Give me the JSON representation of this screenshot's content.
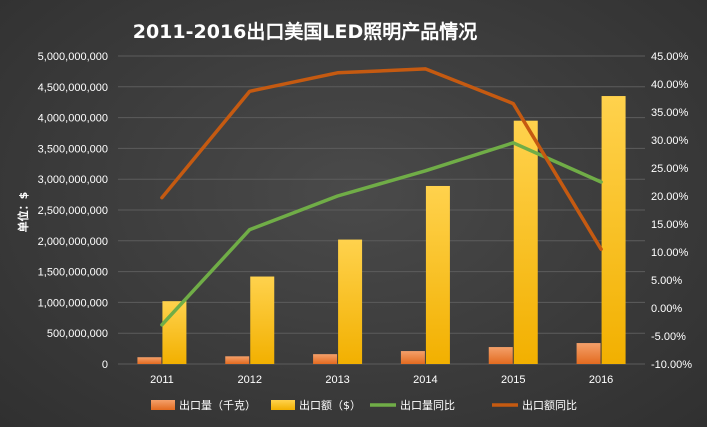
{
  "chart_data": {
    "type": "bar",
    "title": "2011-2016出口美国LED照明产品情况",
    "ylabel": "单位：$",
    "categories": [
      "2011",
      "2012",
      "2013",
      "2014",
      "2015",
      "2016"
    ],
    "ylim": [
      0,
      5000000000
    ],
    "y2lim": [
      -0.1,
      0.45
    ],
    "yticks": [
      "0",
      "500,000,000",
      "1,000,000,000",
      "1,500,000,000",
      "2,000,000,000",
      "2,500,000,000",
      "3,000,000,000",
      "3,500,000,000",
      "4,000,000,000",
      "4,500,000,000",
      "5,000,000,000"
    ],
    "y2ticks": [
      "-10.00%",
      "-5.00%",
      "0.00%",
      "5.00%",
      "10.00%",
      "15.00%",
      "20.00%",
      "25.00%",
      "30.00%",
      "35.00%",
      "40.00%",
      "45.00%"
    ],
    "grid": true,
    "legend_position": "bottom",
    "series": [
      {
        "name": "出口量（千克）",
        "type": "bar",
        "axis": "left",
        "color": "#ed7d31",
        "values": [
          110000000,
          125000000,
          160000000,
          210000000,
          275000000,
          340000000
        ]
      },
      {
        "name": "出口额（$）",
        "type": "bar",
        "axis": "left",
        "color": "#ffc000",
        "values": [
          1020000000,
          1420000000,
          2020000000,
          2890000000,
          3950000000,
          4350000000
        ]
      },
      {
        "name": "出口量同比",
        "type": "line",
        "axis": "right",
        "color": "#70ad47",
        "values": [
          -0.03,
          0.14,
          0.2,
          0.245,
          0.295,
          0.225
        ]
      },
      {
        "name": "出口额同比",
        "type": "line",
        "axis": "right",
        "color": "#c55a11",
        "values": [
          0.197,
          0.387,
          0.42,
          0.427,
          0.365,
          0.105
        ]
      }
    ]
  }
}
